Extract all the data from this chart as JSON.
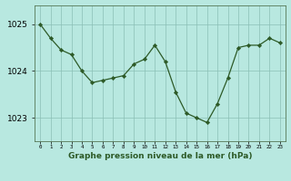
{
  "x": [
    0,
    1,
    2,
    3,
    4,
    5,
    6,
    7,
    8,
    9,
    10,
    11,
    12,
    13,
    14,
    15,
    16,
    17,
    18,
    19,
    20,
    21,
    22,
    23
  ],
  "y": [
    1025.0,
    1024.7,
    1024.45,
    1024.35,
    1024.0,
    1023.75,
    1023.8,
    1023.85,
    1023.9,
    1024.15,
    1024.25,
    1024.55,
    1024.2,
    1023.55,
    1023.1,
    1023.0,
    1022.9,
    1023.3,
    1023.85,
    1024.5,
    1024.55,
    1024.55,
    1024.7,
    1024.6
  ],
  "xlabel": "Graphe pression niveau de la mer (hPa)",
  "bg_color": "#b8e8e0",
  "line_color": "#2d5a27",
  "marker_color": "#2d5a27",
  "grid_color": "#8bbfb5",
  "yticks": [
    1023,
    1024,
    1025
  ],
  "ylim": [
    1022.5,
    1025.4
  ],
  "xlim": [
    -0.5,
    23.5
  ]
}
